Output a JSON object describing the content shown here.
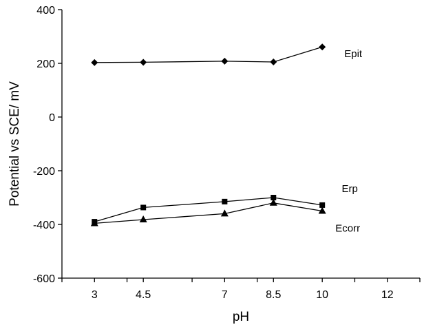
{
  "chart_data": {
    "type": "line",
    "xlabel": "pH",
    "ylabel": "Potential vs SCE/ mV",
    "xlim": [
      2,
      13
    ],
    "ylim": [
      -600,
      400
    ],
    "x_ticks": [
      3,
      4.5,
      7,
      8.5,
      10,
      12
    ],
    "y_ticks": [
      400,
      200,
      0,
      -200,
      -400,
      -600
    ],
    "grid": false,
    "series": [
      {
        "name": "Epit",
        "marker": "diamond",
        "x": [
          3,
          4.5,
          7,
          8.5,
          10
        ],
        "y": [
          203,
          204,
          208,
          205,
          261
        ]
      },
      {
        "name": "Erp",
        "marker": "square",
        "x": [
          3,
          4.5,
          7,
          8.5,
          10
        ],
        "y": [
          -390,
          -337,
          -315,
          -300,
          -328
        ]
      },
      {
        "name": "Ecorr",
        "marker": "triangle",
        "x": [
          3,
          4.5,
          7,
          8.5,
          10
        ],
        "y": [
          -396,
          -382,
          -360,
          -320,
          -350
        ]
      }
    ]
  }
}
